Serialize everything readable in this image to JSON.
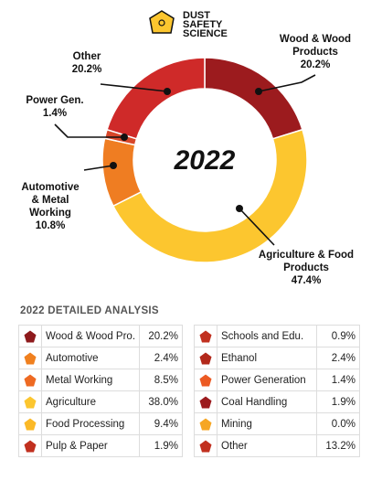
{
  "logo": [
    "DUST",
    "SAFETY",
    "SCIENCE"
  ],
  "chart_data": {
    "type": "pie",
    "center_label": "2022",
    "categories": [
      "Wood & Wood Products",
      "Agriculture & Food Products",
      "Automotive & Metal Working",
      "Power Gen.",
      "Other"
    ],
    "values": [
      20.2,
      47.4,
      10.8,
      1.4,
      20.2
    ],
    "value_labels": [
      "20.2%",
      "47.4%",
      "10.8%",
      "1.4%",
      "20.2%"
    ],
    "colors": [
      "#9c1b1e",
      "#fcc62f",
      "#ef7d22",
      "#d7472a",
      "#cf2a29"
    ]
  },
  "table": {
    "title": "2022 DETAILED ANALYSIS",
    "columns": [
      [
        {
          "name": "Wood & Wood Pro.",
          "value": "20.2%",
          "color": "#8e1a1c"
        },
        {
          "name": "Automotive",
          "value": "2.4%",
          "color": "#f0801f"
        },
        {
          "name": "Metal Working",
          "value": "8.5%",
          "color": "#ee6a22"
        },
        {
          "name": "Agriculture",
          "value": "38.0%",
          "color": "#fcc62f"
        },
        {
          "name": "Food Processing",
          "value": "9.4%",
          "color": "#fbb927"
        },
        {
          "name": "Pulp & Paper",
          "value": "1.9%",
          "color": "#c1301f"
        }
      ],
      [
        {
          "name": "Schools and Edu.",
          "value": "0.9%",
          "color": "#c1301f"
        },
        {
          "name": "Ethanol",
          "value": "2.4%",
          "color": "#b3281b"
        },
        {
          "name": "Power Generation",
          "value": "1.4%",
          "color": "#ec5a23"
        },
        {
          "name": "Coal Handling",
          "value": "1.9%",
          "color": "#9c1b1e"
        },
        {
          "name": "Mining",
          "value": "0.0%",
          "color": "#f6a623"
        },
        {
          "name": "Other",
          "value": "13.2%",
          "color": "#c1301f"
        }
      ]
    ]
  }
}
